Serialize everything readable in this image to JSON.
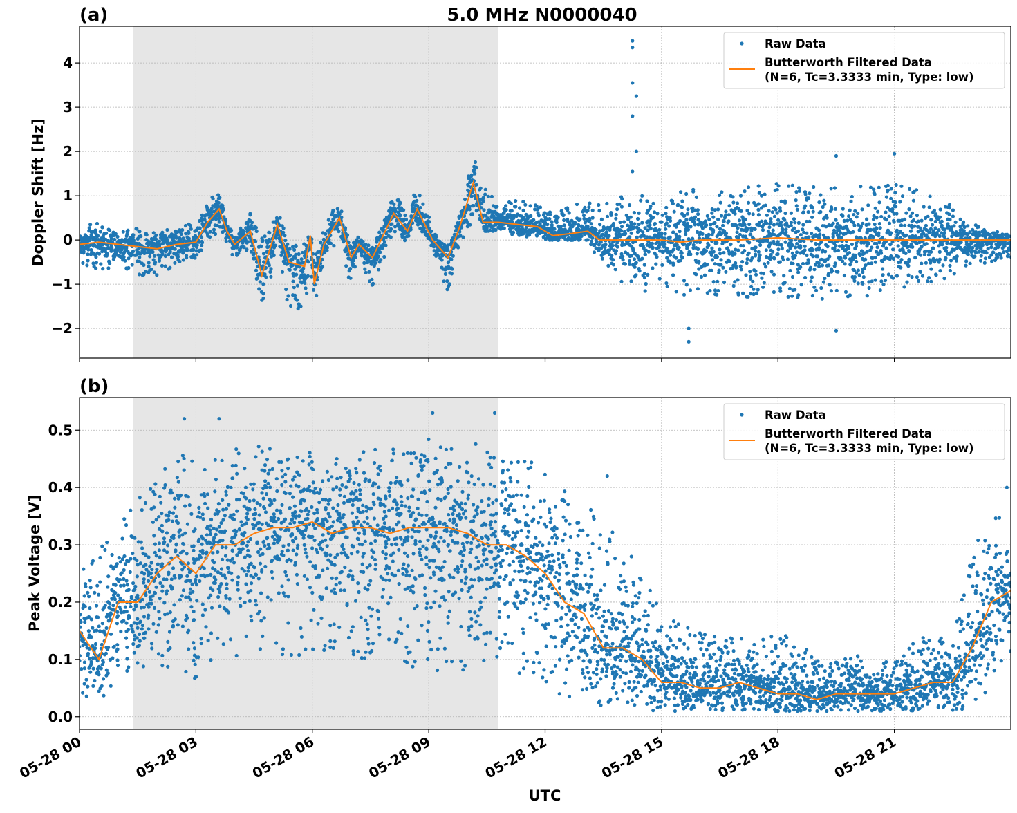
{
  "title": "5.0 MHz N0000040",
  "xlabel": "UTC",
  "colors": {
    "raw": "#1f77b4",
    "filtered": "#ff7f0e",
    "shade": "#e6e6e6",
    "grid": "#b0b0b0"
  },
  "chart_data": [
    {
      "type": "scatter+line",
      "panel_label": "(a)",
      "ylabel": "Doppler Shift [Hz]",
      "xunit": "hours UTC on 05-28",
      "xlim": [
        0,
        24
      ],
      "ylim": [
        -2.67,
        4.83
      ],
      "xticks": [
        0,
        3,
        6,
        9,
        12,
        15,
        18,
        21
      ],
      "xtick_labels": [
        "05-28 00",
        "05-28 03",
        "05-28 06",
        "05-28 09",
        "05-28 12",
        "05-28 15",
        "05-28 18",
        "05-28 21"
      ],
      "yticks": [
        -2,
        -1,
        0,
        1,
        2,
        3,
        4
      ],
      "ytick_labels": [
        "−2",
        "−1",
        "0",
        "1",
        "2",
        "3",
        "4"
      ],
      "grid": true,
      "shaded_interval": [
        1.39,
        10.79
      ],
      "legend": {
        "placement": "upper right",
        "entries": [
          "Raw Data",
          "Butterworth Filtered Data",
          "(N=6, Tc=3.3333 min, Type: low)"
        ]
      },
      "series_columns": [
        "hour",
        "filtered",
        "raw_min",
        "raw_max"
      ],
      "series": [
        [
          0,
          -0.1,
          -0.5,
          0.3
        ],
        [
          0.5,
          -0.05,
          -0.7,
          0.4
        ],
        [
          1,
          -0.1,
          -0.6,
          0.2
        ],
        [
          1.5,
          -0.15,
          -0.8,
          0.3
        ],
        [
          2,
          -0.2,
          -0.8,
          0.2
        ],
        [
          2.5,
          -0.1,
          -0.6,
          0.3
        ],
        [
          3,
          -0.05,
          -0.4,
          0.4
        ],
        [
          3.3,
          0.4,
          0.0,
          0.9
        ],
        [
          3.6,
          0.7,
          0.2,
          1.1
        ],
        [
          3.8,
          0.2,
          -0.1,
          0.6
        ],
        [
          4.0,
          -0.1,
          -0.4,
          0.2
        ],
        [
          4.4,
          0.2,
          -0.2,
          0.6
        ],
        [
          4.7,
          -0.8,
          -1.7,
          0.0
        ],
        [
          5.1,
          0.35,
          -0.4,
          0.7
        ],
        [
          5.4,
          -0.5,
          -1.5,
          -0.1
        ],
        [
          5.8,
          -0.6,
          -1.6,
          0.0
        ],
        [
          5.95,
          0.1,
          -0.3,
          0.1
        ],
        [
          6.05,
          -1.0,
          -1.5,
          -0.2
        ],
        [
          6.3,
          -0.1,
          -0.4,
          0.3
        ],
        [
          6.7,
          0.5,
          0.0,
          0.95
        ],
        [
          7.0,
          -0.4,
          -1.0,
          -0.1
        ],
        [
          7.2,
          -0.1,
          -0.3,
          0.1
        ],
        [
          7.55,
          -0.4,
          -1.2,
          -0.2
        ],
        [
          8.1,
          0.6,
          0.2,
          1.1
        ],
        [
          8.45,
          0.2,
          -0.1,
          0.6
        ],
        [
          8.7,
          0.7,
          0.3,
          1.3
        ],
        [
          9.1,
          0.0,
          -0.2,
          0.3
        ],
        [
          9.5,
          -0.4,
          -1.2,
          -0.1
        ],
        [
          9.8,
          0.3,
          -0.1,
          0.7
        ],
        [
          10.15,
          1.3,
          0.5,
          2.0
        ],
        [
          10.4,
          0.4,
          0.2,
          1.2
        ],
        [
          10.8,
          0.4,
          0.2,
          0.8
        ],
        [
          11.3,
          0.35,
          0.1,
          0.9
        ],
        [
          11.8,
          0.3,
          0.0,
          0.8
        ],
        [
          12.2,
          0.1,
          0.0,
          0.6
        ],
        [
          12.7,
          0.15,
          0.0,
          0.8
        ],
        [
          13.1,
          0.2,
          0.0,
          0.9
        ],
        [
          13.4,
          0.0,
          -0.5,
          0.8
        ],
        [
          14,
          0.0,
          -1.0,
          1.0
        ],
        [
          14.5,
          0.0,
          -1.2,
          1.0
        ],
        [
          15,
          0.0,
          -1.0,
          0.8
        ],
        [
          15.5,
          -0.05,
          -1.3,
          1.2
        ],
        [
          16,
          0.0,
          -1.2,
          1.2
        ],
        [
          17,
          0.0,
          -1.3,
          1.2
        ],
        [
          18,
          0.05,
          -1.3,
          1.3
        ],
        [
          19,
          0.0,
          -1.4,
          1.3
        ],
        [
          20,
          0.0,
          -1.3,
          1.2
        ],
        [
          21,
          0.0,
          -1.2,
          1.3
        ],
        [
          22,
          0.0,
          -1.0,
          1.0
        ],
        [
          22.5,
          0.0,
          -0.8,
          0.8
        ],
        [
          23,
          0.0,
          -0.6,
          0.4
        ],
        [
          24,
          0.0,
          -0.4,
          0.1
        ]
      ],
      "raw_outliers": [
        [
          14.25,
          4.5
        ],
        [
          14.25,
          4.35
        ],
        [
          14.25,
          3.55
        ],
        [
          14.25,
          2.8
        ],
        [
          14.35,
          3.25
        ],
        [
          14.35,
          2.0
        ],
        [
          14.25,
          1.55
        ],
        [
          15.7,
          -2.3
        ],
        [
          15.7,
          -2.0
        ],
        [
          19.5,
          -2.05
        ],
        [
          19.5,
          1.9
        ],
        [
          21.0,
          1.95
        ]
      ]
    },
    {
      "type": "scatter+line",
      "panel_label": "(b)",
      "ylabel": "Peak Voltage [V]",
      "xunit": "hours UTC on 05-28",
      "xlim": [
        0,
        24
      ],
      "ylim": [
        -0.022,
        0.557
      ],
      "xticks": [
        0,
        3,
        6,
        9,
        12,
        15,
        18,
        21
      ],
      "xtick_labels": [
        "05-28 00",
        "05-28 03",
        "05-28 06",
        "05-28 09",
        "05-28 12",
        "05-28 15",
        "05-28 18",
        "05-28 21"
      ],
      "yticks": [
        0.0,
        0.1,
        0.2,
        0.3,
        0.4,
        0.5
      ],
      "ytick_labels": [
        "0.0",
        "0.1",
        "0.2",
        "0.3",
        "0.4",
        "0.5"
      ],
      "grid": true,
      "shaded_interval": [
        1.39,
        10.79
      ],
      "legend": {
        "placement": "upper right",
        "entries": [
          "Raw Data",
          "Butterworth Filtered Data",
          "(N=6, Tc=3.3333 min, Type: low)"
        ]
      },
      "series_columns": [
        "hour",
        "filtered",
        "raw_min",
        "raw_max"
      ],
      "series": [
        [
          0,
          0.15,
          0.03,
          0.25
        ],
        [
          0.5,
          0.1,
          0.03,
          0.3
        ],
        [
          1,
          0.2,
          0.05,
          0.33
        ],
        [
          1.5,
          0.2,
          0.08,
          0.38
        ],
        [
          2,
          0.25,
          0.08,
          0.42
        ],
        [
          2.5,
          0.28,
          0.08,
          0.47
        ],
        [
          3,
          0.25,
          0.06,
          0.45
        ],
        [
          3.5,
          0.3,
          0.1,
          0.45
        ],
        [
          4,
          0.3,
          0.1,
          0.47
        ],
        [
          4.5,
          0.32,
          0.12,
          0.47
        ],
        [
          5,
          0.33,
          0.1,
          0.48
        ],
        [
          5.5,
          0.33,
          0.1,
          0.47
        ],
        [
          6,
          0.34,
          0.1,
          0.47
        ],
        [
          6.5,
          0.32,
          0.12,
          0.47
        ],
        [
          7,
          0.33,
          0.1,
          0.46
        ],
        [
          7.5,
          0.33,
          0.1,
          0.47
        ],
        [
          8,
          0.32,
          0.12,
          0.47
        ],
        [
          8.5,
          0.33,
          0.08,
          0.47
        ],
        [
          9,
          0.33,
          0.08,
          0.5
        ],
        [
          9.5,
          0.33,
          0.06,
          0.48
        ],
        [
          10,
          0.32,
          0.08,
          0.48
        ],
        [
          10.5,
          0.3,
          0.1,
          0.47
        ],
        [
          11,
          0.3,
          0.08,
          0.45
        ],
        [
          11.5,
          0.28,
          0.05,
          0.45
        ],
        [
          12,
          0.25,
          0.05,
          0.43
        ],
        [
          12.5,
          0.2,
          0.03,
          0.4
        ],
        [
          13,
          0.18,
          0.02,
          0.38
        ],
        [
          13.5,
          0.12,
          0.02,
          0.36
        ],
        [
          14,
          0.12,
          0.02,
          0.3
        ],
        [
          14.5,
          0.1,
          0.01,
          0.25
        ],
        [
          15,
          0.06,
          0.01,
          0.18
        ],
        [
          15.5,
          0.06,
          0.01,
          0.16
        ],
        [
          16,
          0.05,
          0.01,
          0.15
        ],
        [
          16.5,
          0.05,
          0.01,
          0.14
        ],
        [
          17,
          0.06,
          0.01,
          0.14
        ],
        [
          17.5,
          0.05,
          0.01,
          0.13
        ],
        [
          18,
          0.04,
          0.01,
          0.15
        ],
        [
          18.5,
          0.04,
          0.01,
          0.13
        ],
        [
          19,
          0.03,
          0.01,
          0.1
        ],
        [
          19.5,
          0.04,
          0.01,
          0.1
        ],
        [
          20,
          0.04,
          0.01,
          0.11
        ],
        [
          20.5,
          0.04,
          0.01,
          0.1
        ],
        [
          21,
          0.04,
          0.01,
          0.1
        ],
        [
          21.5,
          0.05,
          0.01,
          0.13
        ],
        [
          22,
          0.06,
          0.01,
          0.15
        ],
        [
          22.5,
          0.06,
          0.01,
          0.12
        ],
        [
          23,
          0.12,
          0.01,
          0.3
        ],
        [
          23.5,
          0.2,
          0.05,
          0.36
        ],
        [
          24,
          0.22,
          0.1,
          0.35
        ]
      ],
      "raw_outliers": [
        [
          2.7,
          0.52
        ],
        [
          3.6,
          0.52
        ],
        [
          9.1,
          0.53
        ],
        [
          10.7,
          0.53
        ],
        [
          13.6,
          0.42
        ],
        [
          23.9,
          0.4
        ]
      ]
    }
  ]
}
